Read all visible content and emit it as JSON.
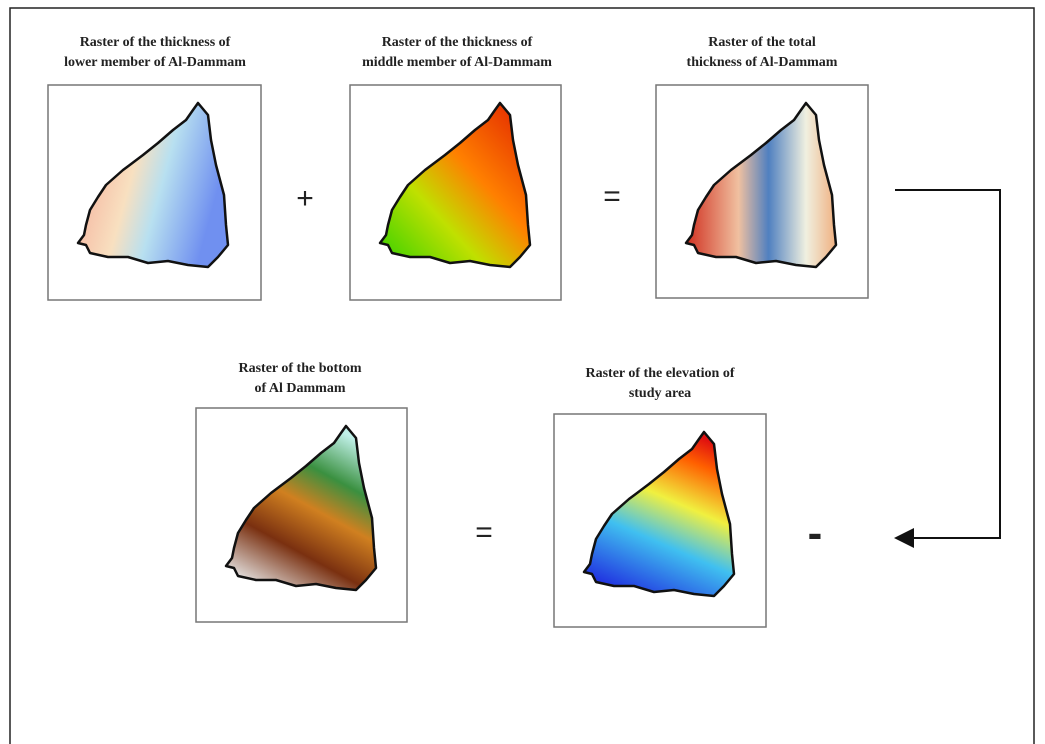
{
  "nodes": [
    {
      "title": [
        "Raster of the thickness of",
        "lower member of Al-Dammam"
      ]
    },
    {
      "title": [
        "Raster of the thickness of",
        "middle member of Al-Dammam"
      ]
    },
    {
      "title": [
        "Raster of the total",
        "thickness of Al-Dammam"
      ]
    },
    {
      "title": [
        "Raster of the bottom",
        "of Al Dammam"
      ]
    },
    {
      "title": [
        "Raster of the elevation of",
        "study area"
      ]
    }
  ],
  "operators": [
    "+",
    "=",
    "=",
    "-"
  ]
}
